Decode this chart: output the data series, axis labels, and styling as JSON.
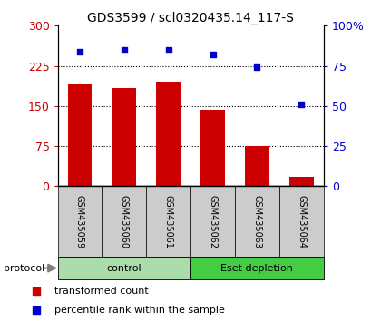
{
  "title": "GDS3599 / scl0320435.14_117-S",
  "categories": [
    "GSM435059",
    "GSM435060",
    "GSM435061",
    "GSM435062",
    "GSM435063",
    "GSM435064"
  ],
  "transformed_counts": [
    190,
    183,
    195,
    143,
    75,
    18
  ],
  "percentile_ranks": [
    84,
    85,
    85,
    82,
    74,
    51
  ],
  "left_ylim": [
    0,
    300
  ],
  "right_ylim": [
    0,
    100
  ],
  "left_yticks": [
    0,
    75,
    150,
    225,
    300
  ],
  "right_yticks": [
    0,
    25,
    50,
    75,
    100
  ],
  "left_yticklabels": [
    "0",
    "75",
    "150",
    "225",
    "300"
  ],
  "right_yticklabels": [
    "0",
    "25",
    "50",
    "75",
    "100%"
  ],
  "left_ytick_color": "#cc0000",
  "right_ytick_color": "#0000cc",
  "bar_color": "#cc0000",
  "dot_color": "#0000cc",
  "gridline_color": "black",
  "gridline_style": "dotted",
  "gridline_values": [
    75,
    150,
    225
  ],
  "groups": [
    {
      "label": "control",
      "indices": [
        0,
        1,
        2
      ],
      "color": "#aaddaa"
    },
    {
      "label": "Eset depletion",
      "indices": [
        3,
        4,
        5
      ],
      "color": "#44cc44"
    }
  ],
  "protocol_label": "protocol",
  "legend_items": [
    {
      "label": "transformed count",
      "color": "#cc0000"
    },
    {
      "label": "percentile rank within the sample",
      "color": "#0000cc"
    }
  ],
  "bar_width": 0.55,
  "background_color": "#ffffff",
  "ticklabel_area_color": "#cccccc",
  "figure_width": 4.1,
  "figure_height": 3.54
}
